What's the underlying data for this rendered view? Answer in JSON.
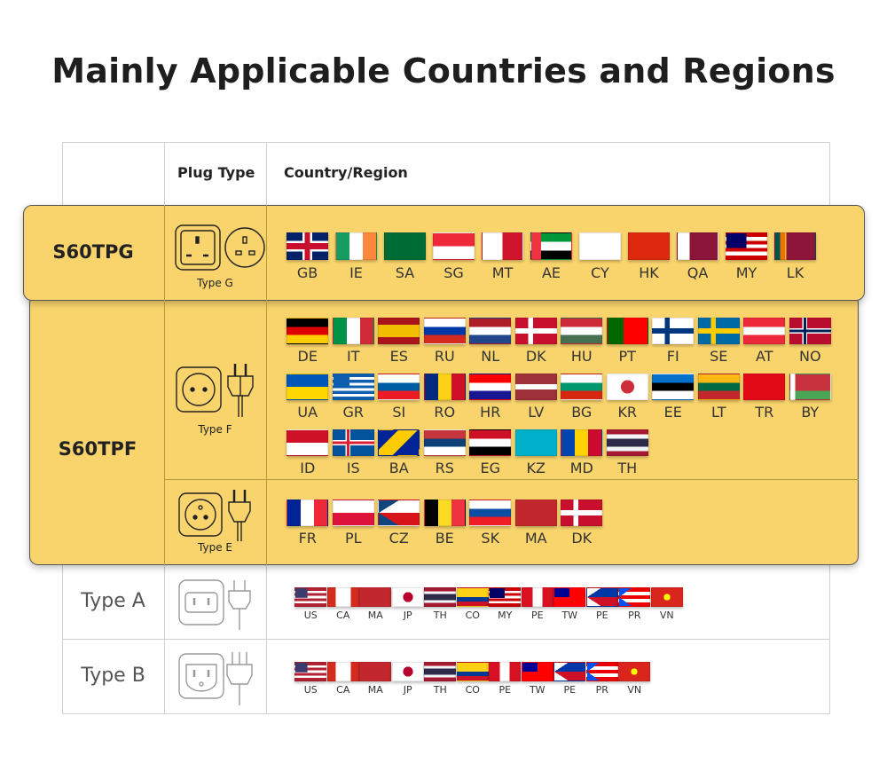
{
  "title": "Mainly Applicable Countries and Regions",
  "header": {
    "plug_type": "Plug Type",
    "country_region": "Country/Region"
  },
  "colors": {
    "highlight": "#f9d46d",
    "border": "#555555"
  },
  "rows": {
    "g": {
      "model": "S60TPG",
      "type": "Type G",
      "flags": [
        "GB",
        "IE",
        "SA",
        "SG",
        "MT",
        "AE",
        "CY",
        "HK",
        "QA",
        "MY",
        "LK"
      ]
    },
    "f": {
      "model": "S60TPF",
      "type": "Type F",
      "flags": [
        "DE",
        "IT",
        "ES",
        "RU",
        "NL",
        "DK",
        "HU",
        "PT",
        "FI",
        "SE",
        "AT",
        "NO",
        "UA",
        "GR",
        "SI",
        "RO",
        "HR",
        "LV",
        "BG",
        "KR",
        "EE",
        "LT",
        "TR",
        "BY",
        "ID",
        "IS",
        "BA",
        "RS",
        "EG",
        "KZ",
        "MD",
        "TH"
      ]
    },
    "e": {
      "type": "Type E",
      "flags": [
        "FR",
        "PL",
        "CZ",
        "BE",
        "SK",
        "MA",
        "DK"
      ]
    },
    "a": {
      "model": "Type A",
      "flags": [
        "US",
        "CA",
        "MA",
        "JP",
        "TH",
        "CO",
        "MY",
        "PE",
        "TW",
        "PE",
        "PR",
        "VN"
      ]
    },
    "b": {
      "model": "Type B",
      "flags": [
        "US",
        "CA",
        "MA",
        "JP",
        "TH",
        "CO",
        "PE",
        "TW",
        "PE",
        "PR",
        "VN"
      ]
    }
  }
}
